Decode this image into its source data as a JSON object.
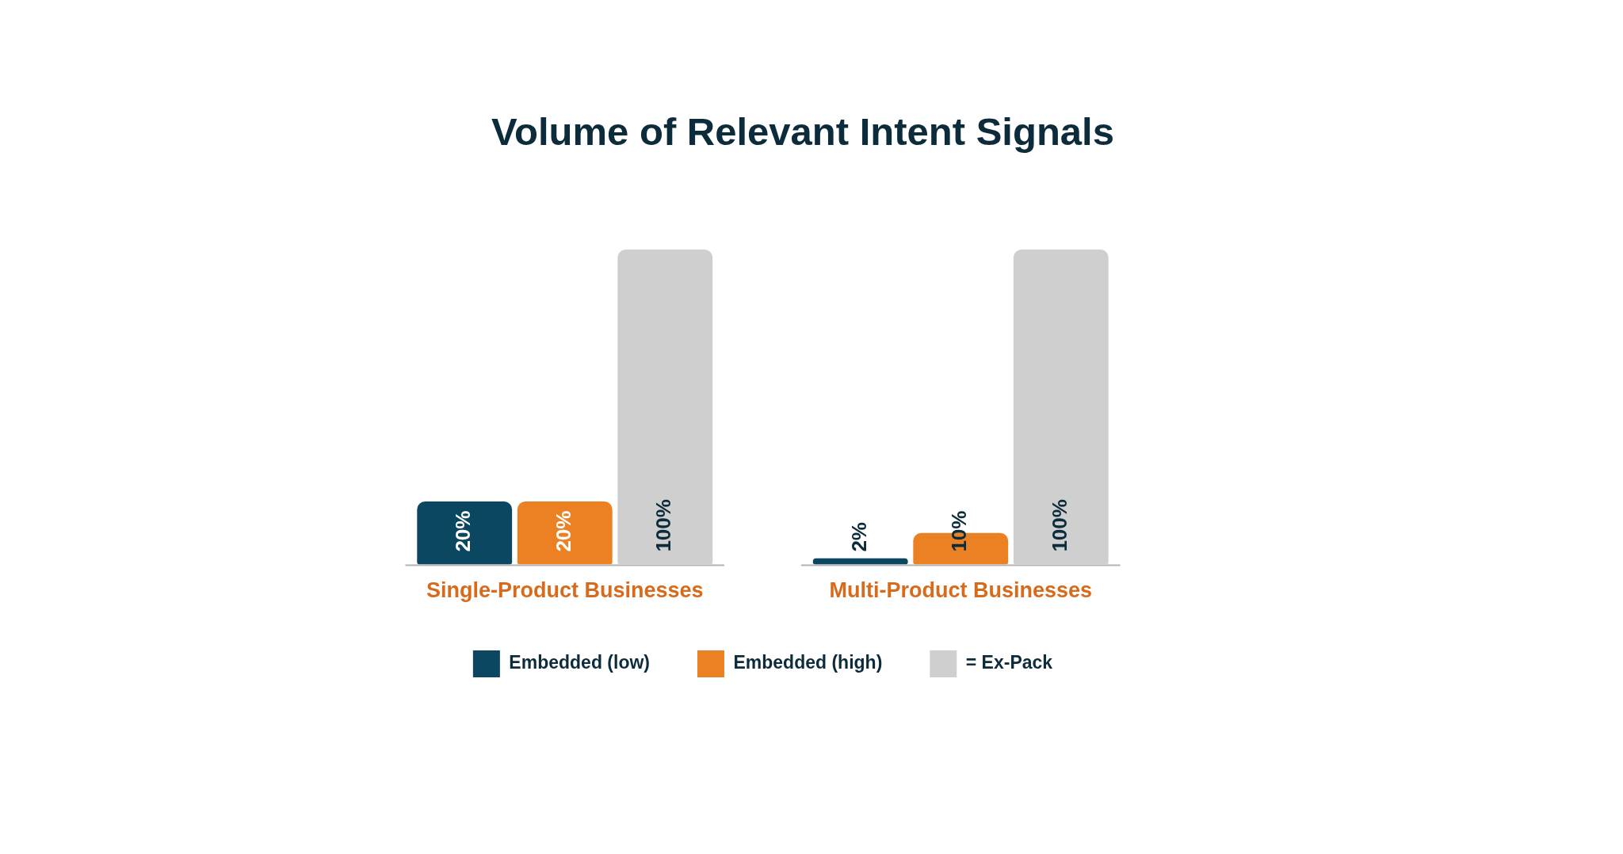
{
  "chart_data": {
    "type": "bar",
    "title": "Volume of Relevant Intent Signals",
    "categories": [
      "Single-Product Businesses",
      "Multi-Product Businesses"
    ],
    "series": [
      {
        "name": "Embedded (low)",
        "color": "#0b4760",
        "values": [
          20,
          2
        ],
        "value_labels": [
          "20%",
          "2%"
        ]
      },
      {
        "name": "Embedded (high)",
        "color": "#ec8123",
        "values": [
          20,
          10
        ],
        "value_labels": [
          "20%",
          "10%"
        ]
      },
      {
        "name": "= Ex-Pack",
        "color": "#cfcfcf",
        "values": [
          100,
          100
        ],
        "value_labels": [
          "100%",
          "100%"
        ]
      }
    ],
    "ylim": [
      0,
      100
    ],
    "tick_labels": "x",
    "legend": "bottom"
  }
}
